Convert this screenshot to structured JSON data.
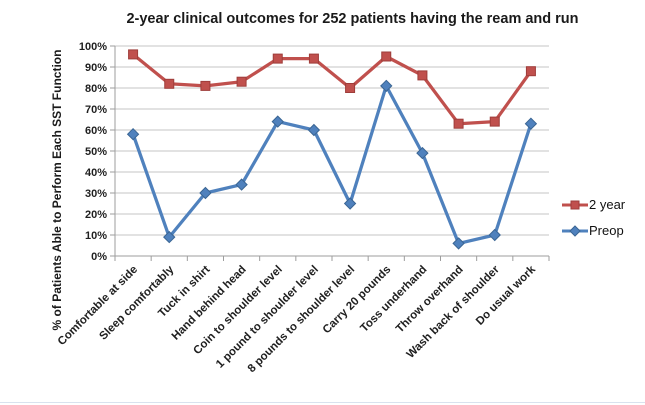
{
  "title": "2-year clinical outcomes for 252 patients having the ream and run",
  "chart_data": {
    "type": "line",
    "title": "2-year clinical outcomes for 252 patients having the ream and run",
    "ylabel": "% of Patients Able to Perform Each SST Function",
    "xlabel": "",
    "ylim": [
      0,
      100
    ],
    "ytick_step": 10,
    "ytick_labels": [
      "0%",
      "10%",
      "20%",
      "30%",
      "40%",
      "50%",
      "60%",
      "70%",
      "80%",
      "90%",
      "100%"
    ],
    "grid": true,
    "legend_position": "right",
    "categories": [
      "Comfortable at side",
      "Sleep comfortably",
      "Tuck in shirt",
      "Hand behind head",
      "Coin to shoulder level",
      "1 pound to shoulder level",
      "8 pounds to shoulder level",
      "Carry 20 pounds",
      "Toss underhand",
      "Throw overhand",
      "Wash back of shoulder",
      "Do usual work"
    ],
    "series": [
      {
        "name": "2 year",
        "color": "#C0504D",
        "edge_color": "#9E3D3A",
        "marker": "square",
        "values": [
          96,
          82,
          81,
          83,
          94,
          94,
          80,
          95,
          86,
          63,
          64,
          88
        ]
      },
      {
        "name": "Preop",
        "color": "#4F81BD",
        "edge_color": "#3A6593",
        "marker": "diamond",
        "values": [
          58,
          9,
          30,
          34,
          64,
          60,
          25,
          81,
          49,
          6,
          10,
          63
        ]
      }
    ]
  },
  "colors": {
    "grid": "#c6c6c6",
    "axis": "#9d9d9d",
    "background": "#ffffff",
    "text": "#1f1f1f"
  }
}
